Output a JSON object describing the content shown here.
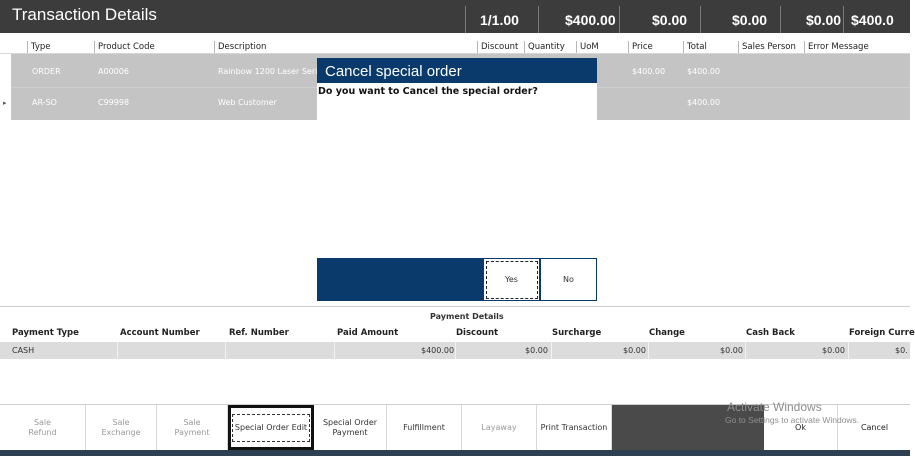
{
  "header": {
    "title": "Transaction Details",
    "summary": [
      "1/1.00",
      "$400.00",
      "$0.00",
      "$0.00",
      "$0.00",
      "$400.0"
    ]
  },
  "grid": {
    "columns": [
      "Type",
      "Product Code",
      "Description",
      "Discount",
      "Quantity",
      "UoM",
      "Price",
      "Total",
      "Sales Person",
      "Error Message"
    ],
    "rows": [
      {
        "type": "ORDER",
        "code": "A00006",
        "description": "Rainbow 1200 Laser Seri",
        "price": "$400.00",
        "total": "$400.00"
      },
      {
        "type": "AR-SO",
        "code": "C99998",
        "description": "Web Customer",
        "price": "",
        "total": "$400.00"
      }
    ],
    "row_marker": "▸"
  },
  "modal": {
    "title": "Cancel special order",
    "question": "Do you want to Cancel the special order?",
    "yes": "Yes",
    "no": "No"
  },
  "payment": {
    "title": "Payment Details",
    "columns": [
      "Payment Type",
      "Account Number",
      "Ref. Number",
      "Paid Amount",
      "Discount",
      "Surcharge",
      "Change",
      "Cash Back",
      "Foreign Curre"
    ],
    "row": {
      "type": "CASH",
      "account": "",
      "ref": "",
      "paid": "$400.00",
      "discount": "$0.00",
      "surcharge": "$0.00",
      "change": "$0.00",
      "cashback": "$0.00",
      "foreign": "$0."
    }
  },
  "toolbar": {
    "sale_refund": [
      "Sale",
      "Refund"
    ],
    "sale_exchange": [
      "Sale",
      "Exchange"
    ],
    "sale_payment": [
      "Sale",
      "Payment"
    ],
    "special_order_edit": "Special Order Edit",
    "special_order_payment": [
      "Special Order",
      "Payment"
    ],
    "fulfillment": "Fulfillment",
    "layaway": "Layaway",
    "print_transaction": "Print Transaction",
    "ok": "Ok",
    "cancel": "Cancel"
  },
  "watermark": {
    "line1": "Activate Windows",
    "line2": "Go to Settings to activate Windows."
  },
  "colors": {
    "header_bg": "#3c3c3c",
    "modal_blue": "#0a3a6b",
    "row_gray": "#c4c4c4"
  }
}
